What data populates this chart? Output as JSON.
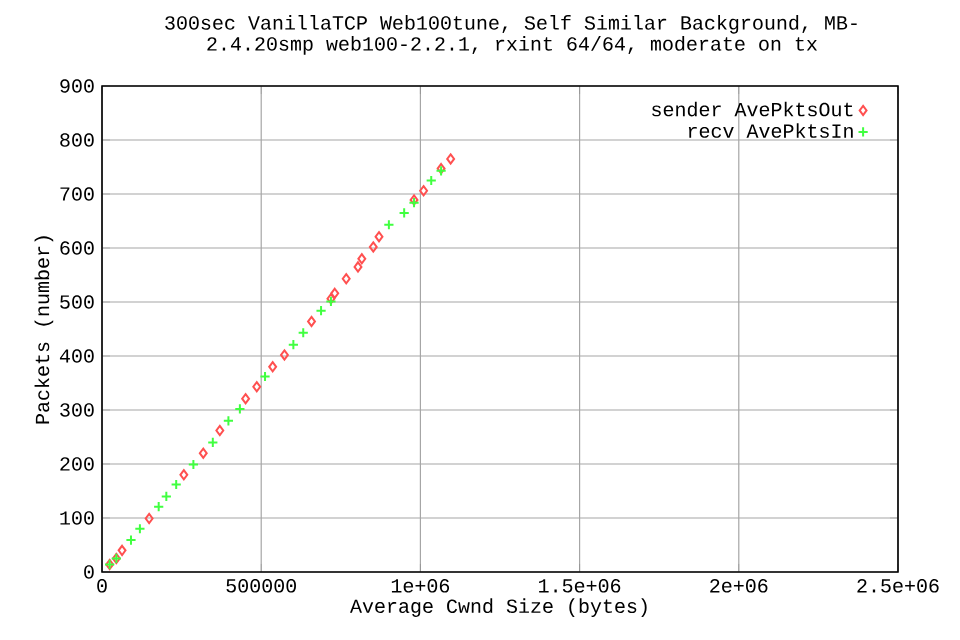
{
  "chart_data": {
    "type": "scatter",
    "title": "300sec  VanillaTCP  Web100tune, Self Similar Background, MB-",
    "subtitle": "2.4.20smp web100-2.2.1, rxint 64/64, moderate on tx",
    "xlabel": "Average Cwnd Size (bytes)",
    "ylabel": "Packets (number)",
    "xlim": [
      0,
      2500000
    ],
    "ylim": [
      0,
      900
    ],
    "xticks": [
      0,
      500000,
      {
        "value": 1000000,
        "label": "1e+06"
      },
      {
        "value": 1500000,
        "label": "1.5e+06"
      },
      {
        "value": 2000000,
        "label": "2e+06"
      },
      {
        "value": 2500000,
        "label": "2.5e+06"
      }
    ],
    "yticks": [
      0,
      100,
      200,
      300,
      400,
      500,
      600,
      700,
      800,
      900
    ],
    "grid": true,
    "legend": "top right",
    "series": [
      {
        "name": "sender AvePktsOut",
        "color": "#ff5050",
        "marker": "diamond",
        "x": [
          24000,
          45000,
          63000,
          148000,
          257000,
          318000,
          370000,
          451000,
          486000,
          536000,
          573000,
          658000,
          719000,
          731000,
          767000,
          804000,
          816000,
          852000,
          870000,
          980000,
          1010000,
          1065000,
          1095000
        ],
        "values": [
          14,
          25,
          40,
          99,
          180,
          220,
          262,
          321,
          343,
          380,
          402,
          464,
          506,
          516,
          543,
          565,
          580,
          602,
          621,
          689,
          706,
          747,
          765
        ]
      },
      {
        "name": "recv AvePktsIn",
        "color": "#40ff40",
        "marker": "cross",
        "x": [
          24000,
          45000,
          91000,
          119000,
          178000,
          202000,
          233000,
          287000,
          348000,
          397000,
          433000,
          512000,
          601000,
          632000,
          688000,
          719000,
          901000,
          949000,
          980000,
          1034000,
          1065000
        ],
        "values": [
          14,
          25,
          59,
          80,
          121,
          140,
          162,
          199,
          240,
          280,
          302,
          362,
          421,
          443,
          484,
          501,
          643,
          665,
          684,
          725,
          743
        ]
      }
    ]
  }
}
